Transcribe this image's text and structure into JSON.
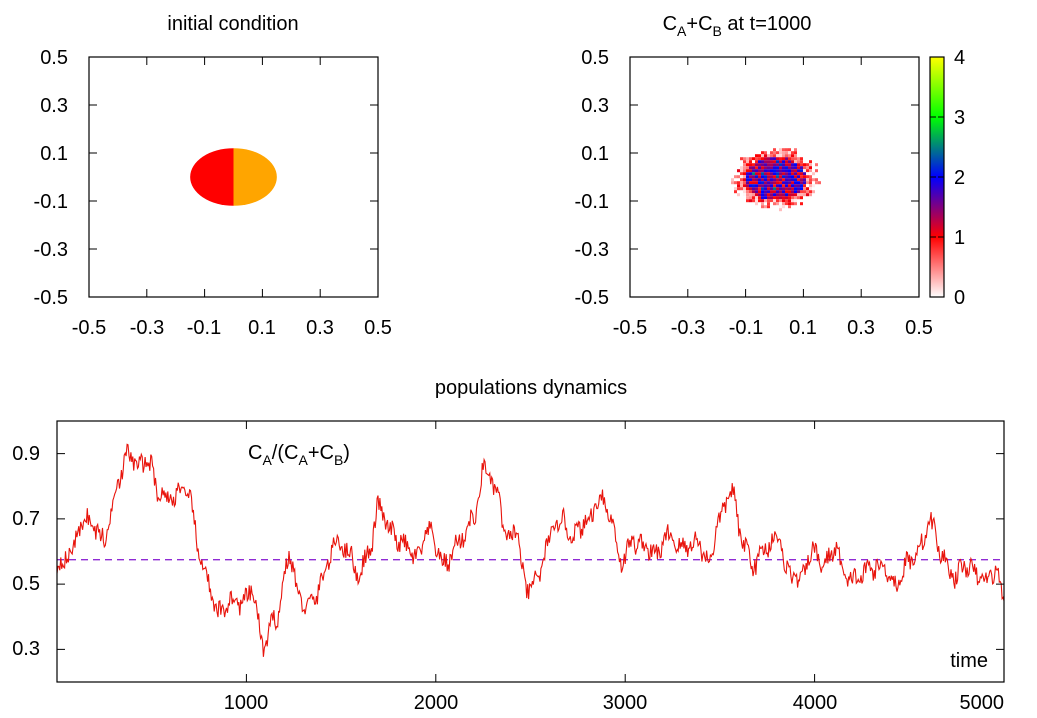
{
  "chart_data": [
    {
      "type": "heatmap",
      "title": "initial condition",
      "xlim": [
        -0.5,
        0.5
      ],
      "ylim": [
        -0.5,
        0.5
      ],
      "xticks": [
        "-0.5",
        "-0.3",
        "-0.1",
        "0.1",
        "0.3",
        "0.5"
      ],
      "yticks": [
        "0.5",
        "0.3",
        "0.1",
        "-0.1",
        "-0.3",
        "-0.5"
      ],
      "regions": [
        {
          "shape": "half-disc",
          "side": "left",
          "center": [
            0.0,
            0.0
          ],
          "radius_x": 0.15,
          "radius_y": 0.12,
          "color": "#ff0000"
        },
        {
          "shape": "half-disc",
          "side": "right",
          "center": [
            0.0,
            0.0
          ],
          "radius_x": 0.15,
          "radius_y": 0.12,
          "color": "#ffa500"
        }
      ],
      "grid": false
    },
    {
      "type": "heatmap",
      "title_main": "C",
      "title_sub_a": "A",
      "title_plus": "+C",
      "title_sub_b": "B",
      "title_rest": " at t=1000",
      "xlim": [
        -0.5,
        0.5
      ],
      "ylim": [
        -0.5,
        0.5
      ],
      "xticks": [
        "-0.5",
        "-0.3",
        "-0.1",
        "0.1",
        "0.3",
        "0.5"
      ],
      "yticks": [
        "0.5",
        "0.3",
        "0.1",
        "-0.1",
        "-0.3",
        "-0.5"
      ],
      "blob": {
        "center": [
          0.0,
          0.0
        ],
        "radius_x": 0.14,
        "radius_y": 0.12
      },
      "colorbar": {
        "range": [
          0,
          4
        ],
        "ticks": [
          "4",
          "3",
          "2",
          "1",
          "0"
        ],
        "stops": [
          {
            "v": 0,
            "color": "#ffffff"
          },
          {
            "v": 1,
            "color": "#ff0000"
          },
          {
            "v": 1.5,
            "color": "#800080"
          },
          {
            "v": 2,
            "color": "#0000ff"
          },
          {
            "v": 3,
            "color": "#00ff00"
          },
          {
            "v": 4,
            "color": "#ffff00"
          }
        ]
      },
      "grid": false
    },
    {
      "type": "line",
      "title": "populations dynamics",
      "xlim": [
        0,
        5000
      ],
      "ylim": [
        0.2,
        1.0
      ],
      "xticks": [
        "1000",
        "2000",
        "3000",
        "4000",
        "5000"
      ],
      "yticks": [
        "0.9",
        "0.7",
        "0.5",
        "0.3"
      ],
      "xlabel": "time",
      "series": [
        {
          "label_main": "C",
          "label_sub_a": "A",
          "label_mid": "/(C",
          "label_sub_a2": "A",
          "label_plus": "+C",
          "label_sub_b": "B",
          "label_close": ")",
          "color": "#e8140c",
          "anchors": [
            [
              0,
              0.55
            ],
            [
              60,
              0.59
            ],
            [
              150,
              0.7
            ],
            [
              250,
              0.64
            ],
            [
              330,
              0.83
            ],
            [
              380,
              0.9
            ],
            [
              430,
              0.86
            ],
            [
              480,
              0.88
            ],
            [
              540,
              0.78
            ],
            [
              600,
              0.76
            ],
            [
              650,
              0.79
            ],
            [
              700,
              0.76
            ],
            [
              760,
              0.57
            ],
            [
              850,
              0.41
            ],
            [
              920,
              0.45
            ],
            [
              980,
              0.44
            ],
            [
              1030,
              0.48
            ],
            [
              1090,
              0.31
            ],
            [
              1150,
              0.39
            ],
            [
              1230,
              0.58
            ],
            [
              1290,
              0.44
            ],
            [
              1350,
              0.44
            ],
            [
              1410,
              0.53
            ],
            [
              1470,
              0.63
            ],
            [
              1530,
              0.61
            ],
            [
              1590,
              0.53
            ],
            [
              1650,
              0.6
            ],
            [
              1700,
              0.74
            ],
            [
              1760,
              0.66
            ],
            [
              1830,
              0.62
            ],
            [
              1900,
              0.58
            ],
            [
              1960,
              0.66
            ],
            [
              2050,
              0.56
            ],
            [
              2120,
              0.63
            ],
            [
              2200,
              0.7
            ],
            [
              2260,
              0.86
            ],
            [
              2320,
              0.78
            ],
            [
              2380,
              0.63
            ],
            [
              2420,
              0.67
            ],
            [
              2480,
              0.48
            ],
            [
              2540,
              0.52
            ],
            [
              2600,
              0.64
            ],
            [
              2660,
              0.7
            ],
            [
              2720,
              0.65
            ],
            [
              2800,
              0.69
            ],
            [
              2870,
              0.77
            ],
            [
              2920,
              0.71
            ],
            [
              2980,
              0.57
            ],
            [
              3040,
              0.63
            ],
            [
              3100,
              0.62
            ],
            [
              3160,
              0.59
            ],
            [
              3230,
              0.65
            ],
            [
              3300,
              0.61
            ],
            [
              3380,
              0.63
            ],
            [
              3440,
              0.57
            ],
            [
              3500,
              0.7
            ],
            [
              3560,
              0.79
            ],
            [
              3620,
              0.63
            ],
            [
              3680,
              0.56
            ],
            [
              3740,
              0.61
            ],
            [
              3800,
              0.65
            ],
            [
              3860,
              0.54
            ],
            [
              3920,
              0.51
            ],
            [
              3990,
              0.6
            ],
            [
              4050,
              0.56
            ],
            [
              4110,
              0.61
            ],
            [
              4170,
              0.51
            ],
            [
              4230,
              0.52
            ],
            [
              4300,
              0.55
            ],
            [
              4370,
              0.55
            ],
            [
              4430,
              0.5
            ],
            [
              4500,
              0.57
            ],
            [
              4560,
              0.62
            ],
            [
              4610,
              0.69
            ],
            [
              4680,
              0.58
            ],
            [
              4740,
              0.52
            ],
            [
              4800,
              0.56
            ],
            [
              4850,
              0.53
            ],
            [
              4900,
              0.51
            ],
            [
              4950,
              0.54
            ],
            [
              5000,
              0.47
            ]
          ]
        },
        {
          "type": "reference-line",
          "color": "#8f2bd4",
          "dash": "dashed",
          "y": 0.575
        }
      ],
      "grid": false
    }
  ]
}
